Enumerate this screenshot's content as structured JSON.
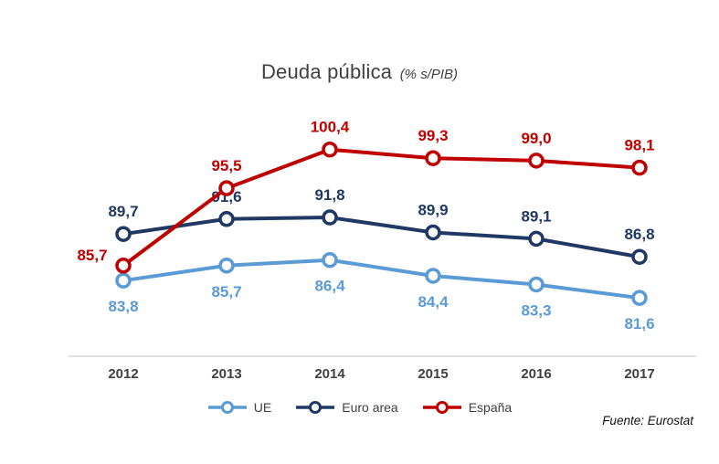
{
  "chart_data": {
    "type": "line",
    "title": "Deuda pública",
    "subtitle": "(% s/PIB)",
    "categories": [
      "2012",
      "2013",
      "2014",
      "2015",
      "2016",
      "2017"
    ],
    "series": [
      {
        "name": "UE",
        "color": "#5B9BD5",
        "values": [
          83.8,
          85.7,
          86.4,
          84.4,
          83.3,
          81.6
        ],
        "labels": [
          "83,8",
          "85,7",
          "86,4",
          "84,4",
          "83,3",
          "81,6"
        ],
        "label_pos": "below"
      },
      {
        "name": "Euro area",
        "color": "#1F3864",
        "values": [
          89.7,
          91.6,
          91.8,
          89.9,
          89.1,
          86.8
        ],
        "labels": [
          "89,7",
          "91,6",
          "91,8",
          "89,9",
          "89,1",
          "86,8"
        ],
        "label_pos": "above"
      },
      {
        "name": "España",
        "color": "#C00000",
        "values": [
          85.7,
          95.5,
          100.4,
          99.3,
          99.0,
          98.1
        ],
        "labels": [
          "85,7",
          "95,5",
          "100,4",
          "99,3",
          "99,0",
          "98,1"
        ],
        "label_pos": "above",
        "label_pos_overrides": {
          "0": "left"
        }
      }
    ],
    "ylim": [
      80,
      104
    ],
    "grid": false,
    "legend_position": "bottom",
    "axis_color": "#d9d9d9",
    "tick_color": "#404040",
    "source_note": "Fuente: Eurostat"
  }
}
